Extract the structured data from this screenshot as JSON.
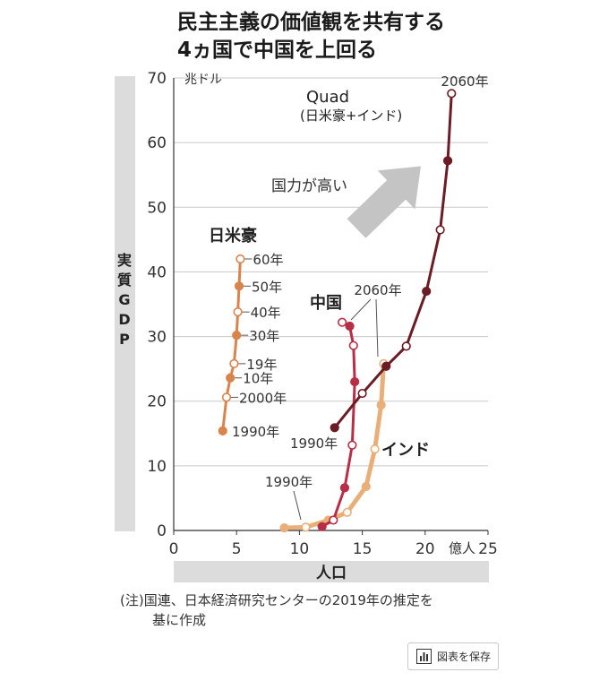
{
  "title": {
    "line1": "民主主義の価値観を共有する",
    "line2": "4ヵ国で中国を上回る"
  },
  "footnote": {
    "line1": "(注)国連、日本経済研究センターの2019年の推定を",
    "line2": "基に作成"
  },
  "save_button": {
    "label": "図表を保存",
    "icon": "chart-icon"
  },
  "colors": {
    "jpn_us_aus": "#d9844c",
    "jpn_us_aus_fill": "#e6a06c",
    "china": "#b82e46",
    "india": "#e8b078",
    "quad": "#6b1c24",
    "arrow": "#c4c4c4",
    "axis_band": "#dcdcdc",
    "grid": "#c8c8c8"
  },
  "chart_data": {
    "type": "line",
    "xlabel": "人口",
    "ylabel": "実質GDP",
    "x_unit": "億人",
    "y_unit": "兆ドル",
    "xlim": [
      0,
      25
    ],
    "ylim": [
      0,
      70
    ],
    "x_ticks": [
      "0",
      "5",
      "10",
      "15",
      "20",
      "25"
    ],
    "y_ticks": [
      "0",
      "10",
      "20",
      "30",
      "40",
      "50",
      "60",
      "70"
    ],
    "grid": "horizontal",
    "arrow_label": "国力が高い",
    "series": [
      {
        "name": "日米豪",
        "color_key": "jpn_us_aus",
        "points": [
          {
            "x": 3.9,
            "y": 15.4,
            "label": "1990年",
            "open": false
          },
          {
            "x": 4.2,
            "y": 20.6,
            "label": "2000年",
            "open": true
          },
          {
            "x": 4.5,
            "y": 23.6,
            "label": "10年",
            "open": false
          },
          {
            "x": 4.8,
            "y": 25.8,
            "label": "19年",
            "open": true
          },
          {
            "x": 5.0,
            "y": 30.2,
            "label": "30年",
            "open": false
          },
          {
            "x": 5.1,
            "y": 33.8,
            "label": "40年",
            "open": true
          },
          {
            "x": 5.2,
            "y": 37.8,
            "label": "50年",
            "open": false
          },
          {
            "x": 5.3,
            "y": 42.0,
            "label": "60年",
            "open": true
          }
        ]
      },
      {
        "name": "中国",
        "color_key": "china",
        "points": [
          {
            "x": 11.8,
            "y": 0.6,
            "open": false
          },
          {
            "x": 12.7,
            "y": 1.6,
            "open": true
          },
          {
            "x": 13.6,
            "y": 6.6,
            "open": false
          },
          {
            "x": 14.2,
            "y": 13.2,
            "open": true
          },
          {
            "x": 14.4,
            "y": 23.0,
            "open": false
          },
          {
            "x": 14.3,
            "y": 28.6,
            "open": true
          },
          {
            "x": 14.0,
            "y": 31.6,
            "open": false
          },
          {
            "x": 13.4,
            "y": 32.2,
            "open": true
          }
        ]
      },
      {
        "name": "インド",
        "color_key": "india",
        "points": [
          {
            "x": 8.8,
            "y": 0.4,
            "open": false
          },
          {
            "x": 10.5,
            "y": 0.5,
            "open": true
          },
          {
            "x": 12.3,
            "y": 1.6,
            "open": false
          },
          {
            "x": 13.8,
            "y": 2.8,
            "open": true
          },
          {
            "x": 15.3,
            "y": 6.8,
            "open": false
          },
          {
            "x": 16.0,
            "y": 12.6,
            "open": true
          },
          {
            "x": 16.5,
            "y": 19.4,
            "open": false
          },
          {
            "x": 16.7,
            "y": 25.8,
            "open": true
          }
        ]
      },
      {
        "name": "Quad(日米豪+インド)",
        "name_line1": "Quad",
        "name_line2": "(日米豪+インド)",
        "color_key": "quad",
        "points": [
          {
            "x": 12.8,
            "y": 15.9,
            "open": false
          },
          {
            "x": 15.0,
            "y": 21.2,
            "open": true
          },
          {
            "x": 16.9,
            "y": 25.4,
            "open": false
          },
          {
            "x": 18.5,
            "y": 28.5,
            "open": true
          },
          {
            "x": 20.1,
            "y": 37.0,
            "open": false
          },
          {
            "x": 21.2,
            "y": 46.5,
            "open": true
          },
          {
            "x": 21.8,
            "y": 57.2,
            "open": false
          },
          {
            "x": 22.1,
            "y": 67.6,
            "open": true
          }
        ]
      }
    ],
    "annotations": {
      "china_1990": "1990年",
      "india_1990": "1990年",
      "china_2060": "2060年",
      "quad_2060": "2060年"
    }
  }
}
